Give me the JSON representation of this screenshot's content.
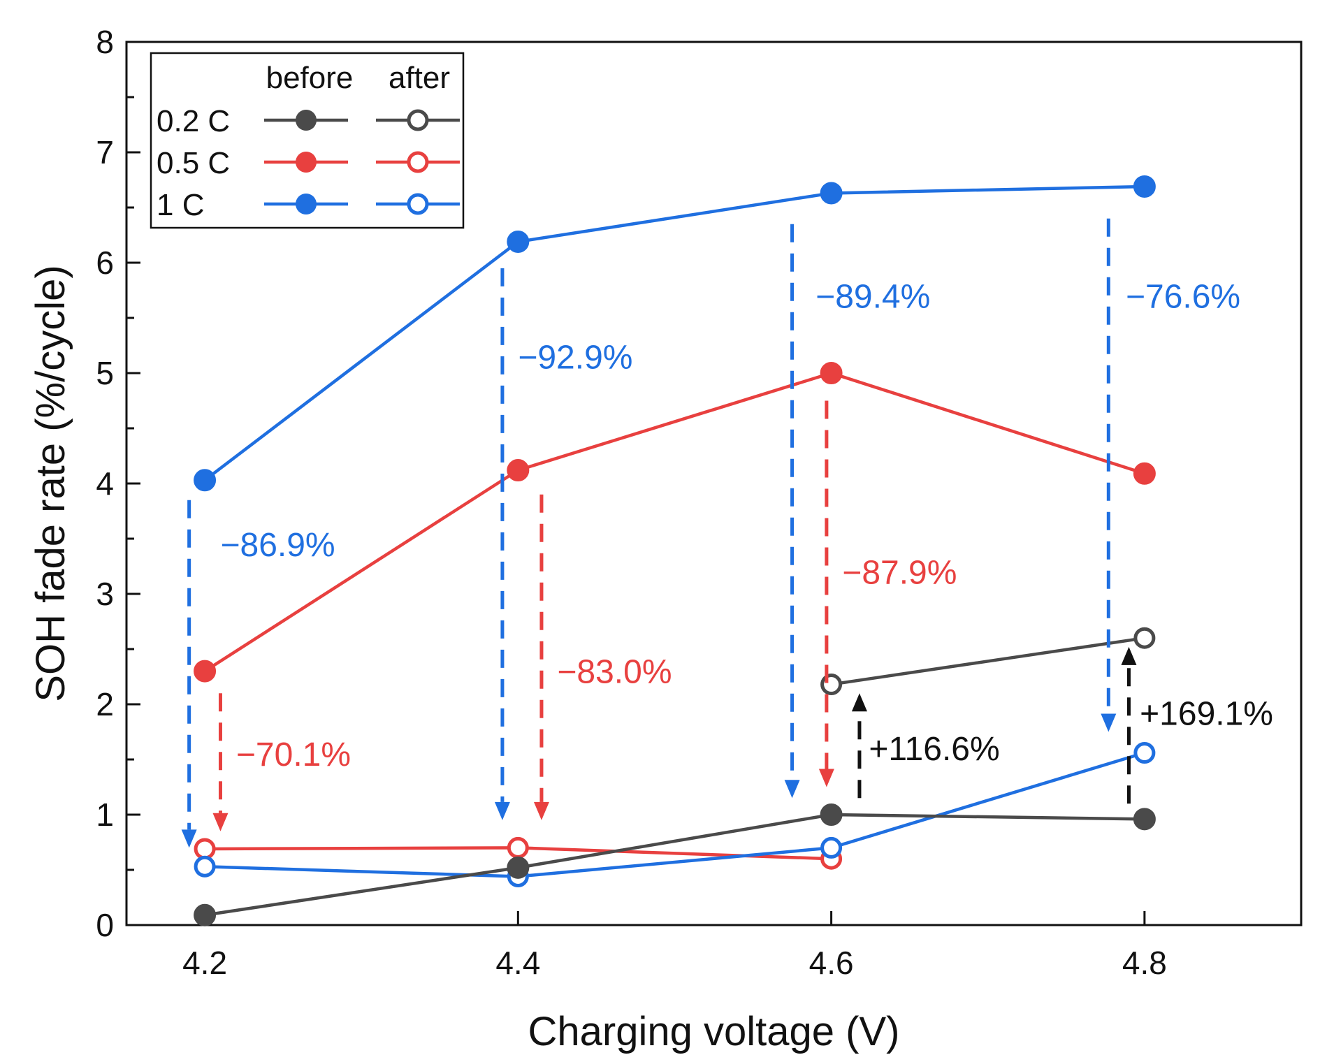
{
  "chart_data": {
    "type": "line",
    "xlabel": "Charging voltage (V)",
    "ylabel": "SOH fade rate (%/cycle)",
    "xlim": [
      4.15,
      4.9
    ],
    "ylim": [
      0,
      8
    ],
    "x_ticks": [
      4.2,
      4.4,
      4.6,
      4.8
    ],
    "x_tick_labels": [
      "4.2",
      "4.4",
      "4.6",
      "4.8"
    ],
    "y_ticks": [
      0,
      1,
      2,
      3,
      4,
      5,
      6,
      7,
      8
    ],
    "y_tick_labels": [
      "0",
      "1",
      "2",
      "3",
      "4",
      "5",
      "6",
      "7",
      "8"
    ],
    "grid": false,
    "legend": {
      "placement": "top-left",
      "col_headers": [
        "before",
        "after"
      ],
      "rows": [
        "0.2 C",
        "0.5 C",
        "1 C"
      ]
    },
    "colors": {
      "0.2 C": "#4a4a4a",
      "0.5 C": "#e8403f",
      "1 C": "#1f6fe0"
    },
    "series": [
      {
        "name": "0.2 C",
        "state": "before",
        "x": [
          4.2,
          4.4,
          4.6,
          4.8
        ],
        "values": [
          0.09,
          0.52,
          1.0,
          0.96
        ]
      },
      {
        "name": "0.5 C",
        "state": "before",
        "x": [
          4.2,
          4.4,
          4.6,
          4.8
        ],
        "values": [
          2.3,
          4.12,
          5.0,
          4.09
        ]
      },
      {
        "name": "1 C",
        "state": "before",
        "x": [
          4.2,
          4.4,
          4.6,
          4.8
        ],
        "values": [
          4.03,
          6.19,
          6.63,
          6.69
        ]
      },
      {
        "name": "0.2 C",
        "state": "after",
        "x": [
          4.6,
          4.8
        ],
        "values": [
          2.18,
          2.6
        ]
      },
      {
        "name": "0.5 C",
        "state": "after",
        "x": [
          4.2,
          4.4,
          4.6
        ],
        "values": [
          0.69,
          0.7,
          0.6
        ]
      },
      {
        "name": "1 C",
        "state": "after",
        "x": [
          4.2,
          4.4,
          4.6,
          4.8
        ],
        "values": [
          0.53,
          0.44,
          0.7,
          1.56
        ]
      }
    ],
    "annotations": [
      {
        "text": "−86.9%",
        "color": "#1f6fe0",
        "x": 4.19,
        "y_from": 3.85,
        "y_to": 0.7,
        "tx": 4.21,
        "ty": 3.45
      },
      {
        "text": "−70.1%",
        "color": "#e8403f",
        "x": 4.21,
        "y_from": 2.1,
        "y_to": 0.85,
        "tx": 4.22,
        "ty": 1.55
      },
      {
        "text": "−92.9%",
        "color": "#1f6fe0",
        "x": 4.39,
        "y_from": 5.95,
        "y_to": 0.95,
        "tx": 4.4,
        "ty": 5.15
      },
      {
        "text": "−83.0%",
        "color": "#e8403f",
        "x": 4.415,
        "y_from": 3.9,
        "y_to": 0.95,
        "tx": 4.425,
        "ty": 2.3
      },
      {
        "text": "−89.4%",
        "color": "#1f6fe0",
        "x": 4.575,
        "y_from": 6.35,
        "y_to": 1.15,
        "tx": 4.59,
        "ty": 5.7
      },
      {
        "text": "−87.9%",
        "color": "#e8403f",
        "x": 4.597,
        "y_from": 4.75,
        "y_to": 1.25,
        "tx": 4.607,
        "ty": 3.2
      },
      {
        "text": "−76.6%",
        "color": "#1f6fe0",
        "x": 4.777,
        "y_from": 6.4,
        "y_to": 1.75,
        "tx": 4.788,
        "ty": 5.7
      },
      {
        "text": "+116.6%",
        "color": "#111111",
        "x": 4.618,
        "y_from": 1.15,
        "y_to": 2.1,
        "tx": 4.624,
        "ty": 1.6
      },
      {
        "text": "+169.1%",
        "color": "#111111",
        "x": 4.79,
        "y_from": 1.1,
        "y_to": 2.52,
        "tx": 4.797,
        "ty": 1.92
      }
    ]
  }
}
